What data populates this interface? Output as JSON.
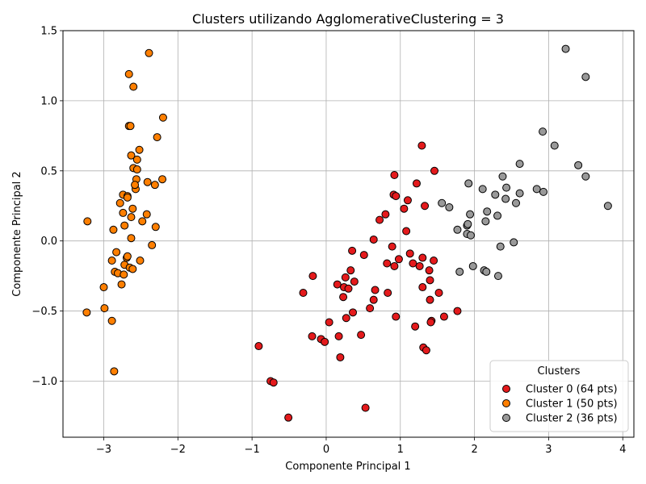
{
  "chart_data": {
    "type": "scatter",
    "title": "Clusters utilizando AgglomerativeClustering = 3",
    "xlabel": "Componente Principal 1",
    "ylabel": "Componente Principal 2",
    "xlim": [
      -3.55,
      4.15
    ],
    "ylim": [
      -1.4,
      1.5
    ],
    "xticks": [
      -3,
      -2,
      -1,
      0,
      1,
      2,
      3,
      4
    ],
    "xtick_labels": [
      "−3",
      "−2",
      "−1",
      "0",
      "1",
      "2",
      "3",
      "4"
    ],
    "yticks": [
      -1.0,
      -0.5,
      0.0,
      0.5,
      1.0,
      1.5
    ],
    "ytick_labels": [
      "−1.0",
      "−0.5",
      "0.0",
      "0.5",
      "1.0",
      "1.5"
    ],
    "grid": true,
    "legend": {
      "title": "Clusters",
      "placement": "lower right"
    },
    "series": [
      {
        "name": "Cluster 0 (64 pts)",
        "color": "#e41a1c",
        "points": [
          [
            -0.91,
            -0.75
          ],
          [
            -0.75,
            -1.0
          ],
          [
            -0.71,
            -1.01
          ],
          [
            -0.51,
            -1.26
          ],
          [
            -0.31,
            -0.37
          ],
          [
            -0.19,
            -0.68
          ],
          [
            -0.18,
            -0.25
          ],
          [
            -0.07,
            -0.7
          ],
          [
            -0.02,
            -0.72
          ],
          [
            0.04,
            -0.58
          ],
          [
            0.15,
            -0.31
          ],
          [
            0.17,
            -0.68
          ],
          [
            0.19,
            -0.83
          ],
          [
            0.23,
            -0.4
          ],
          [
            0.24,
            -0.33
          ],
          [
            0.26,
            -0.26
          ],
          [
            0.27,
            -0.55
          ],
          [
            0.3,
            -0.34
          ],
          [
            0.33,
            -0.21
          ],
          [
            0.35,
            -0.07
          ],
          [
            0.36,
            -0.51
          ],
          [
            0.38,
            -0.29
          ],
          [
            0.47,
            -0.67
          ],
          [
            0.51,
            -0.1
          ],
          [
            0.53,
            -1.19
          ],
          [
            0.59,
            -0.48
          ],
          [
            0.64,
            0.01
          ],
          [
            0.64,
            -0.42
          ],
          [
            0.66,
            -0.35
          ],
          [
            0.72,
            0.15
          ],
          [
            0.8,
            0.19
          ],
          [
            0.82,
            -0.16
          ],
          [
            0.83,
            -0.37
          ],
          [
            0.89,
            -0.04
          ],
          [
            0.91,
            0.33
          ],
          [
            0.92,
            0.47
          ],
          [
            0.92,
            -0.18
          ],
          [
            0.94,
            0.32
          ],
          [
            0.94,
            -0.54
          ],
          [
            0.98,
            -0.13
          ],
          [
            1.05,
            0.23
          ],
          [
            1.08,
            0.07
          ],
          [
            1.1,
            0.29
          ],
          [
            1.13,
            -0.09
          ],
          [
            1.17,
            -0.16
          ],
          [
            1.2,
            -0.61
          ],
          [
            1.22,
            0.41
          ],
          [
            1.26,
            -0.18
          ],
          [
            1.29,
            0.68
          ],
          [
            1.3,
            -0.12
          ],
          [
            1.3,
            -0.33
          ],
          [
            1.31,
            -0.76
          ],
          [
            1.33,
            0.25
          ],
          [
            1.35,
            -0.78
          ],
          [
            1.39,
            -0.21
          ],
          [
            1.4,
            -0.28
          ],
          [
            1.4,
            -0.42
          ],
          [
            1.42,
            -0.57
          ],
          [
            1.45,
            -0.14
          ],
          [
            1.46,
            0.5
          ],
          [
            1.52,
            -0.37
          ],
          [
            1.59,
            -0.54
          ],
          [
            1.77,
            -0.5
          ],
          [
            1.41,
            -0.58
          ]
        ]
      },
      {
        "name": "Cluster 1 (50 pts)",
        "color": "#ff7f00",
        "points": [
          [
            -3.23,
            -0.51
          ],
          [
            -3.22,
            0.14
          ],
          [
            -3.0,
            -0.33
          ],
          [
            -2.99,
            -0.48
          ],
          [
            -2.89,
            -0.14
          ],
          [
            -2.89,
            -0.57
          ],
          [
            -2.87,
            0.08
          ],
          [
            -2.86,
            -0.93
          ],
          [
            -2.85,
            -0.22
          ],
          [
            -2.83,
            -0.08
          ],
          [
            -2.81,
            -0.23
          ],
          [
            -2.78,
            0.27
          ],
          [
            -2.76,
            -0.31
          ],
          [
            -2.74,
            0.33
          ],
          [
            -2.73,
            -0.24
          ],
          [
            -2.72,
            0.11
          ],
          [
            -2.72,
            -0.17
          ],
          [
            -2.69,
            -0.12
          ],
          [
            -2.68,
            -0.11
          ],
          [
            -2.68,
            0.32
          ],
          [
            -2.66,
            1.19
          ],
          [
            -2.66,
            0.82
          ],
          [
            -2.65,
            -0.19
          ],
          [
            -2.64,
            0.82
          ],
          [
            -2.63,
            0.17
          ],
          [
            -2.63,
            0.61
          ],
          [
            -2.63,
            0.02
          ],
          [
            -2.61,
            -0.2
          ],
          [
            -2.61,
            0.23
          ],
          [
            -2.6,
            1.1
          ],
          [
            -2.6,
            0.52
          ],
          [
            -2.57,
            0.37
          ],
          [
            -2.56,
            0.44
          ],
          [
            -2.55,
            0.58
          ],
          [
            -2.55,
            0.51
          ],
          [
            -2.52,
            0.65
          ],
          [
            -2.51,
            -0.14
          ],
          [
            -2.48,
            0.14
          ],
          [
            -2.42,
            0.19
          ],
          [
            -2.41,
            0.42
          ],
          [
            -2.39,
            1.34
          ],
          [
            -2.35,
            -0.03
          ],
          [
            -2.31,
            0.4
          ],
          [
            -2.3,
            0.1
          ],
          [
            -2.28,
            0.74
          ],
          [
            -2.21,
            0.44
          ],
          [
            -2.2,
            0.88
          ],
          [
            -2.68,
            0.31
          ],
          [
            -2.58,
            0.4
          ],
          [
            -2.74,
            0.2
          ]
        ]
      },
      {
        "name": "Cluster 2 (36 pts)",
        "color": "#999999",
        "points": [
          [
            1.56,
            0.27
          ],
          [
            1.66,
            0.24
          ],
          [
            1.77,
            0.08
          ],
          [
            1.8,
            -0.22
          ],
          [
            1.9,
            0.11
          ],
          [
            1.9,
            0.05
          ],
          [
            1.91,
            0.12
          ],
          [
            1.92,
            0.41
          ],
          [
            1.94,
            0.19
          ],
          [
            1.95,
            0.04
          ],
          [
            1.98,
            -0.18
          ],
          [
            2.11,
            0.37
          ],
          [
            2.13,
            -0.21
          ],
          [
            2.15,
            0.14
          ],
          [
            2.16,
            -0.22
          ],
          [
            2.17,
            0.21
          ],
          [
            2.28,
            0.33
          ],
          [
            2.31,
            0.18
          ],
          [
            2.32,
            -0.25
          ],
          [
            2.35,
            -0.04
          ],
          [
            2.38,
            0.46
          ],
          [
            2.42,
            0.3
          ],
          [
            2.43,
            0.38
          ],
          [
            2.53,
            -0.01
          ],
          [
            2.56,
            0.27
          ],
          [
            2.61,
            0.55
          ],
          [
            2.61,
            0.34
          ],
          [
            2.84,
            0.37
          ],
          [
            2.92,
            0.78
          ],
          [
            2.93,
            0.35
          ],
          [
            3.08,
            0.68
          ],
          [
            3.23,
            1.37
          ],
          [
            3.4,
            0.54
          ],
          [
            3.5,
            1.17
          ],
          [
            3.5,
            0.46
          ],
          [
            3.8,
            0.25
          ]
        ]
      }
    ]
  }
}
